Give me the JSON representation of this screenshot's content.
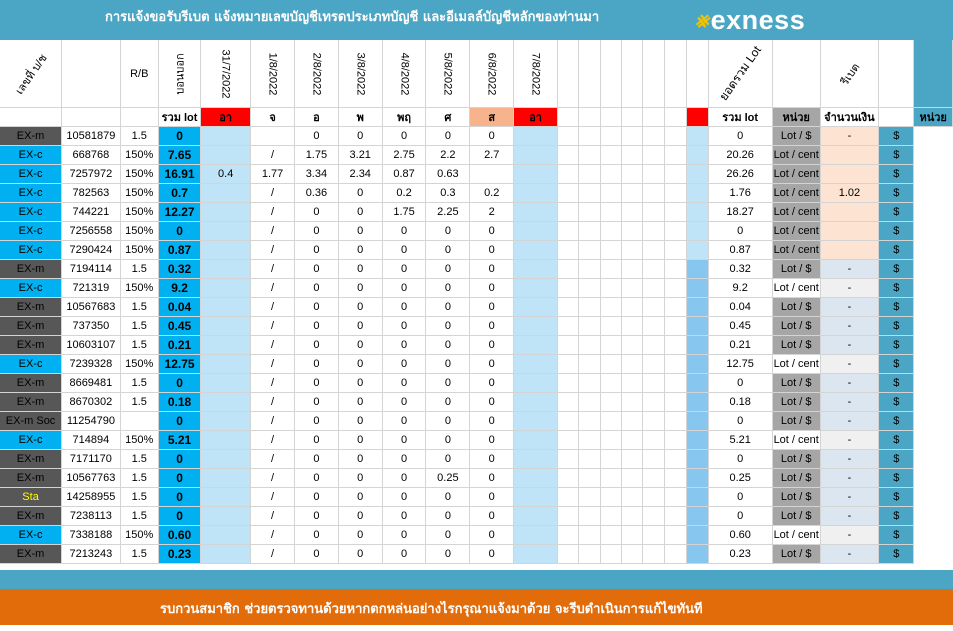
{
  "header": {
    "title": "การแจ้งขอรับรีเบต   แจ้งหมายเลขบัญชีเทรดประเภทบัญชี และอีเมลล์บัญชีหลักของท่านมา",
    "logo_mark": "⨳",
    "logo_word": "exness"
  },
  "columns": {
    "account_no": "เลขที่ บ/ช",
    "rb": "R/B",
    "rebate": "บอนบอก",
    "dates": [
      "31/7/2022",
      "1/8/2022",
      "2/8/2022",
      "3/8/2022",
      "4/8/2022",
      "5/8/2022",
      "6/8/2022",
      "7/8/2022"
    ],
    "total_lot_vertical": "ยอดรวม Lot",
    "rebate_red": "รีเบต",
    "sum_lot": "รวม lot",
    "days": [
      "อา",
      "จ",
      "อ",
      "พ",
      "พฤ",
      "ศ",
      "ส",
      "อา"
    ],
    "sum_lot2": "รวม lot",
    "unit": "หน่วย",
    "amount": "จำนวนเงิน",
    "unit2": "หน่วย"
  },
  "rows": [
    {
      "type": "EX-m",
      "acc": "10581879",
      "rb": "1.5",
      "sum": "0",
      "d": [
        "",
        "0",
        "0",
        "0",
        "0",
        "0"
      ],
      "d0": "",
      "total": "0",
      "unit": "Lot / $",
      "money": "-",
      "dol": "$"
    },
    {
      "type": "EX-c",
      "acc": "668768",
      "rb": "150%",
      "sum": "7.65",
      "d0": "",
      "d": [
        "/",
        "1.75",
        "3.21",
        "2.75",
        "2.2",
        "2.7"
      ],
      "total": "20.26",
      "unit": "Lot / cent",
      "money": "",
      "dol": "$"
    },
    {
      "type": "EX-c",
      "acc": "7257972",
      "rb": "150%",
      "sum": "16.91",
      "d0": "0.4",
      "d": [
        "1.77",
        "3.34",
        "2.34",
        "0.87",
        "0.63"
      ],
      "total": "26.26",
      "unit": "Lot / cent",
      "money": "",
      "dol": "$"
    },
    {
      "type": "EX-c",
      "acc": "782563",
      "rb": "150%",
      "sum": "0.7",
      "d0": "",
      "d": [
        "/",
        "0.36",
        "0",
        "0.2",
        "0.3",
        "0.2"
      ],
      "total": "1.76",
      "unit": "Lot / cent",
      "money": "1.02",
      "dol": "$"
    },
    {
      "type": "EX-c",
      "acc": "744221",
      "rb": "150%",
      "sum": "12.27",
      "d0": "",
      "d": [
        "/",
        "0",
        "0",
        "1.75",
        "2.25",
        "2"
      ],
      "total": "18.27",
      "unit": "Lot / cent",
      "money": "",
      "dol": "$"
    },
    {
      "type": "EX-c",
      "acc": "7256558",
      "rb": "150%",
      "sum": "0",
      "d0": "",
      "d": [
        "/",
        "0",
        "0",
        "0",
        "0",
        "0"
      ],
      "total": "0",
      "unit": "Lot / cent",
      "money": "",
      "dol": "$"
    },
    {
      "type": "EX-c",
      "acc": "7290424",
      "rb": "150%",
      "sum": "0.87",
      "d0": "",
      "d": [
        "/",
        "0",
        "0",
        "0",
        "0",
        "0"
      ],
      "total": "0.87",
      "unit": "Lot / cent",
      "money": "",
      "dol": "$"
    },
    {
      "type": "EX-m",
      "acc": "7194114",
      "rb": "1.5",
      "sum": "0.32",
      "d0": "",
      "d": [
        "/",
        "0",
        "0",
        "0",
        "0",
        "0"
      ],
      "total": "0.32",
      "unit": "Lot / $",
      "money": "-",
      "dol": "$"
    },
    {
      "type": "EX-c",
      "acc": "721319",
      "rb": "150%",
      "sum": "9.2",
      "d0": "",
      "d": [
        "/",
        "0",
        "0",
        "0",
        "0",
        "0"
      ],
      "total": "9.2",
      "unit": "Lot / cent",
      "money": "-",
      "dol": "$"
    },
    {
      "type": "EX-m",
      "acc": "10567683",
      "rb": "1.5",
      "sum": "0.04",
      "d0": "",
      "d": [
        "/",
        "0",
        "0",
        "0",
        "0",
        "0"
      ],
      "total": "0.04",
      "unit": "Lot / $",
      "money": "-",
      "dol": "$"
    },
    {
      "type": "EX-m",
      "acc": "737350",
      "rb": "1.5",
      "sum": "0.45",
      "d0": "",
      "d": [
        "/",
        "0",
        "0",
        "0",
        "0",
        "0"
      ],
      "total": "0.45",
      "unit": "Lot / $",
      "money": "-",
      "dol": "$"
    },
    {
      "type": "EX-m",
      "acc": "10603107",
      "rb": "1.5",
      "sum": "0.21",
      "d0": "",
      "d": [
        "/",
        "0",
        "0",
        "0",
        "0",
        "0"
      ],
      "total": "0.21",
      "unit": "Lot / $",
      "money": "-",
      "dol": "$"
    },
    {
      "type": "EX-c",
      "acc": "7239328",
      "rb": "150%",
      "sum": "12.75",
      "d0": "",
      "d": [
        "/",
        "0",
        "0",
        "0",
        "0",
        "0"
      ],
      "total": "12.75",
      "unit": "Lot / cent",
      "money": "-",
      "dol": "$"
    },
    {
      "type": "EX-m",
      "acc": "8669481",
      "rb": "1.5",
      "sum": "0",
      "d0": "",
      "d": [
        "/",
        "0",
        "0",
        "0",
        "0",
        "0"
      ],
      "total": "0",
      "unit": "Lot / $",
      "money": "-",
      "dol": "$"
    },
    {
      "type": "EX-m",
      "acc": "8670302",
      "rb": "1.5",
      "sum": "0.18",
      "d0": "",
      "d": [
        "/",
        "0",
        "0",
        "0",
        "0",
        "0"
      ],
      "total": "0.18",
      "unit": "Lot / $",
      "money": "-",
      "dol": "$"
    },
    {
      "type": "EX-m Soc",
      "acc": "11254790",
      "rb": "",
      "sum": "0",
      "d0": "",
      "d": [
        "/",
        "0",
        "0",
        "0",
        "0",
        "0"
      ],
      "total": "0",
      "unit": "Lot / $",
      "money": "-",
      "dol": "$"
    },
    {
      "type": "EX-c",
      "acc": "714894",
      "rb": "150%",
      "sum": "5.21",
      "d0": "",
      "d": [
        "/",
        "0",
        "0",
        "0",
        "0",
        "0"
      ],
      "total": "5.21",
      "unit": "Lot / cent",
      "money": "-",
      "dol": "$"
    },
    {
      "type": "EX-m",
      "acc": "7171170",
      "rb": "1.5",
      "sum": "0",
      "d0": "",
      "d": [
        "/",
        "0",
        "0",
        "0",
        "0",
        "0"
      ],
      "total": "0",
      "unit": "Lot / $",
      "money": "-",
      "dol": "$"
    },
    {
      "type": "EX-m",
      "acc": "10567763",
      "rb": "1.5",
      "sum": "0",
      "d0": "",
      "d": [
        "/",
        "0",
        "0",
        "0",
        "0.25",
        "0"
      ],
      "total": "0.25",
      "unit": "Lot / $",
      "money": "-",
      "dol": "$"
    },
    {
      "type": "Sta",
      "acc": "14258955",
      "rb": "1.5",
      "sum": "0",
      "d0": "",
      "d": [
        "/",
        "0",
        "0",
        "0",
        "0",
        "0"
      ],
      "total": "0",
      "unit": "Lot / $",
      "money": "-",
      "dol": "$"
    },
    {
      "type": "EX-m",
      "acc": "7238113",
      "rb": "1.5",
      "sum": "0",
      "d0": "",
      "d": [
        "/",
        "0",
        "0",
        "0",
        "0",
        "0"
      ],
      "total": "0",
      "unit": "Lot / $",
      "money": "-",
      "dol": "$"
    },
    {
      "type": "EX-c",
      "acc": "7338188",
      "rb": "150%",
      "sum": "0.60",
      "d0": "",
      "d": [
        "/",
        "0",
        "0",
        "0",
        "0",
        "0"
      ],
      "total": "0.60",
      "unit": "Lot / cent",
      "money": "-",
      "dol": "$"
    },
    {
      "type": "EX-m",
      "acc": "7213243",
      "rb": "1.5",
      "sum": "0.23",
      "d0": "",
      "d": [
        "/",
        "0",
        "0",
        "0",
        "0",
        "0"
      ],
      "total": "0.23",
      "unit": "Lot / $",
      "money": "-",
      "dol": "$"
    }
  ],
  "footer": {
    "text": "รบกวนสมาชิก  ช่วยตรวจทานด้วยหากตกหล่นอย่างไรกรุณาแจ้งมาด้วย จะรีบดำเนินการแก้ไขทันที"
  },
  "colors": {
    "header_bar": "#4aa6c4",
    "footer_bar": "#e36c0a",
    "sum_cell": "#00b0f0",
    "red_flag": "#ff0000"
  }
}
